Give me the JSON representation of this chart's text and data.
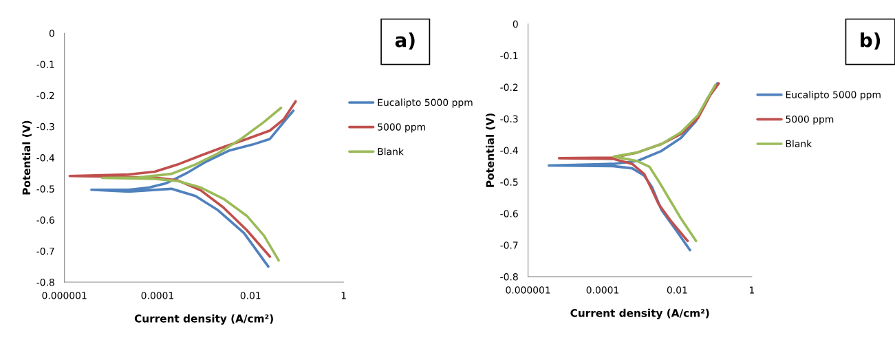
{
  "chart_data": [
    {
      "type": "line",
      "xlabel": "Current density (A/cm²)",
      "ylabel": "Potential (V)",
      "annotations": [
        "a)"
      ],
      "log": "x",
      "xlim": [
        1e-06,
        1
      ],
      "xticks": [
        {
          "value": 1e-06,
          "label": "0.000001"
        },
        {
          "value": 0.0001,
          "label": "0.0001"
        },
        {
          "value": 0.01,
          "label": "0.01"
        },
        1
      ],
      "ylim": [
        -0.8,
        0
      ],
      "yticks": [
        -0.8,
        -0.7,
        -0.6,
        -0.5,
        -0.4,
        -0.3,
        -0.2,
        -0.1,
        0
      ],
      "grid": false,
      "legend": "right",
      "marker": "none",
      "line_style": "solid",
      "series": [
        {
          "name": "Eucalipto 5000 ppm",
          "color": "#4f81bd",
          "x": [
            0.024,
            0.0072,
            0.002,
            0.00065,
            0.0002,
            2.4e-05,
            3.8e-06,
            2.4e-05,
            6.6e-05,
            0.000155,
            0.00042,
            0.0011,
            0.0035,
            0.011,
            0.026,
            0.052,
            0.083
          ],
          "values": [
            -0.75,
            -0.642,
            -0.569,
            -0.523,
            -0.5,
            -0.509,
            -0.503,
            -0.503,
            -0.496,
            -0.482,
            -0.45,
            -0.413,
            -0.377,
            -0.358,
            -0.34,
            -0.285,
            -0.249
          ]
        },
        {
          "name": "5000 ppm",
          "color": "#c0504d",
          "x": [
            0.026,
            0.0083,
            0.0026,
            0.00085,
            0.00027,
            8.7e-05,
            1.3e-06,
            2.4e-05,
            8.7e-05,
            0.00027,
            0.00085,
            0.0026,
            0.0083,
            0.026,
            0.052,
            0.093
          ],
          "values": [
            -0.718,
            -0.633,
            -0.56,
            -0.505,
            -0.473,
            -0.464,
            -0.459,
            -0.454,
            -0.445,
            -0.422,
            -0.393,
            -0.366,
            -0.34,
            -0.313,
            -0.276,
            -0.219
          ]
        },
        {
          "name": "Blank",
          "color": "#9bbb59",
          "x": [
            0.04,
            0.0195,
            0.0083,
            0.0026,
            0.00085,
            0.00027,
            8.7e-05,
            6.5e-06,
            3.7e-05,
            0.0002,
            0.00065,
            0.002,
            0.0062,
            0.0195,
            0.045
          ],
          "values": [
            -0.73,
            -0.651,
            -0.587,
            -0.532,
            -0.496,
            -0.475,
            -0.468,
            -0.465,
            -0.464,
            -0.452,
            -0.422,
            -0.386,
            -0.34,
            -0.285,
            -0.24
          ]
        }
      ]
    },
    {
      "type": "line",
      "xlabel": "Current density (A/cm²)",
      "ylabel": "Potential (V)",
      "annotations": [
        "b)"
      ],
      "log": "x",
      "xlim": [
        1e-06,
        1
      ],
      "xticks": [
        {
          "value": 1e-06,
          "label": "0.000001"
        },
        {
          "value": 0.0001,
          "label": "0.0001"
        },
        {
          "value": 0.01,
          "label": "0.01"
        },
        1
      ],
      "ylim": [
        -0.8,
        0
      ],
      "yticks": [
        -0.8,
        -0.7,
        -0.6,
        -0.5,
        -0.4,
        -0.3,
        -0.2,
        -0.1,
        0
      ],
      "grid": false,
      "legend": "right",
      "marker": "none",
      "line_style": "solid",
      "series": [
        {
          "name": "Eucalipto 5000 ppm",
          "color": "#4f81bd",
          "x": [
            0.022,
            0.0093,
            0.0038,
            0.0021,
            0.0013,
            0.00062,
            0.00019,
            3.6e-06,
            4.2e-05,
            0.00019,
            0.00085,
            0.0038,
            0.0126,
            0.032,
            0.066,
            0.12
          ],
          "values": [
            -0.716,
            -0.653,
            -0.589,
            -0.516,
            -0.48,
            -0.457,
            -0.45,
            -0.448,
            -0.445,
            -0.443,
            -0.434,
            -0.402,
            -0.361,
            -0.307,
            -0.234,
            -0.188
          ]
        },
        {
          "name": "5000 ppm",
          "color": "#c0504d",
          "x": [
            0.019,
            0.0069,
            0.0032,
            0.0021,
            0.0013,
            0.00062,
            0.00019,
            6.8e-06,
            0.00019,
            0.00085,
            0.0038,
            0.0126,
            0.036,
            0.077,
            0.13
          ],
          "values": [
            -0.687,
            -0.625,
            -0.571,
            -0.525,
            -0.475,
            -0.443,
            -0.427,
            -0.425,
            -0.423,
            -0.407,
            -0.38,
            -0.348,
            -0.298,
            -0.225,
            -0.188
          ]
        },
        {
          "name": "Blank",
          "color": "#9bbb59",
          "x": [
            0.032,
            0.0126,
            0.006,
            0.0032,
            0.0018,
            0.00085,
            0.0002,
            0.00085,
            0.0038,
            0.0126,
            0.036,
            0.105
          ],
          "values": [
            -0.687,
            -0.616,
            -0.552,
            -0.498,
            -0.452,
            -0.434,
            -0.42,
            -0.407,
            -0.38,
            -0.343,
            -0.289,
            -0.193
          ]
        }
      ]
    }
  ]
}
